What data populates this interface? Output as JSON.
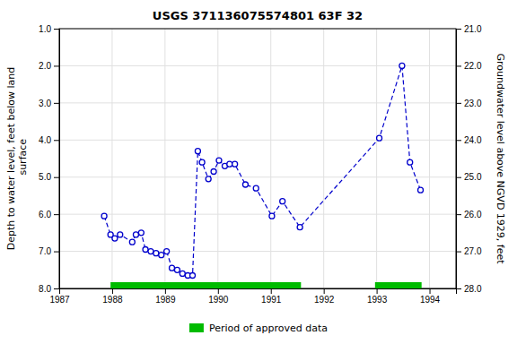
{
  "chart_data": {
    "type": "line",
    "title": "USGS 371136075574801 63F 32",
    "y_label": "Depth to water level, feet below land\n surface",
    "y2_label": "Groundwater level above NGVD 1929, feet",
    "x": [
      1987.85,
      1987.97,
      1988.05,
      1988.15,
      1988.38,
      1988.45,
      1988.55,
      1988.63,
      1988.73,
      1988.83,
      1988.93,
      1989.03,
      1989.13,
      1989.23,
      1989.33,
      1989.43,
      1989.52,
      1989.62,
      1989.7,
      1989.82,
      1989.92,
      1990.02,
      1990.13,
      1990.22,
      1990.32,
      1990.52,
      1990.72,
      1991.02,
      1991.22,
      1991.55,
      1993.05,
      1993.48,
      1993.63,
      1993.83
    ],
    "series": [
      {
        "color": "#0000CC",
        "marker": "circle",
        "line_style": "dashed",
        "values": [
          6.05,
          6.55,
          6.65,
          6.55,
          6.75,
          6.55,
          6.5,
          6.95,
          7.0,
          7.05,
          7.1,
          7.0,
          7.45,
          7.5,
          7.6,
          7.65,
          7.65,
          4.3,
          4.6,
          5.05,
          4.85,
          4.55,
          4.7,
          4.65,
          4.65,
          5.2,
          5.3,
          6.05,
          5.65,
          6.35,
          3.95,
          2.0,
          4.6,
          5.35
        ]
      }
    ],
    "bands": [
      {
        "name": "Period of approved data",
        "color": "#00bb00",
        "ranges": [
          [
            1987.97,
            1991.57
          ],
          [
            1992.97,
            1993.85
          ]
        ]
      }
    ],
    "xlim": [
      1987.0,
      1994.5
    ],
    "xticks": [
      1987,
      1988,
      1989,
      1990,
      1991,
      1992,
      1993,
      1994
    ],
    "ylim": [
      8.0,
      1.0
    ],
    "yticks": [
      {
        "value": 1.0,
        "label": "1.0"
      },
      {
        "value": 2.0,
        "label": "2.0"
      },
      {
        "value": 3.0,
        "label": "3.0"
      },
      {
        "value": 4.0,
        "label": "4.0"
      },
      {
        "value": 5.0,
        "label": "5.0"
      },
      {
        "value": 6.0,
        "label": "6.0"
      },
      {
        "value": 7.0,
        "label": "7.0"
      },
      {
        "value": 8.0,
        "label": "8.0"
      }
    ],
    "y2lim": [
      28.0,
      21.0
    ],
    "y2ticks": [
      {
        "value": 21.0,
        "label": "21.0"
      },
      {
        "value": 22.0,
        "label": "22.0"
      },
      {
        "value": 23.0,
        "label": "23.0"
      },
      {
        "value": 24.0,
        "label": "24.0"
      },
      {
        "value": 25.0,
        "label": "25.0"
      },
      {
        "value": 26.0,
        "label": "26.0"
      },
      {
        "value": 27.0,
        "label": "27.0"
      },
      {
        "value": 28.0,
        "label": "28.0"
      }
    ],
    "grid": true,
    "legend": "bottom"
  }
}
